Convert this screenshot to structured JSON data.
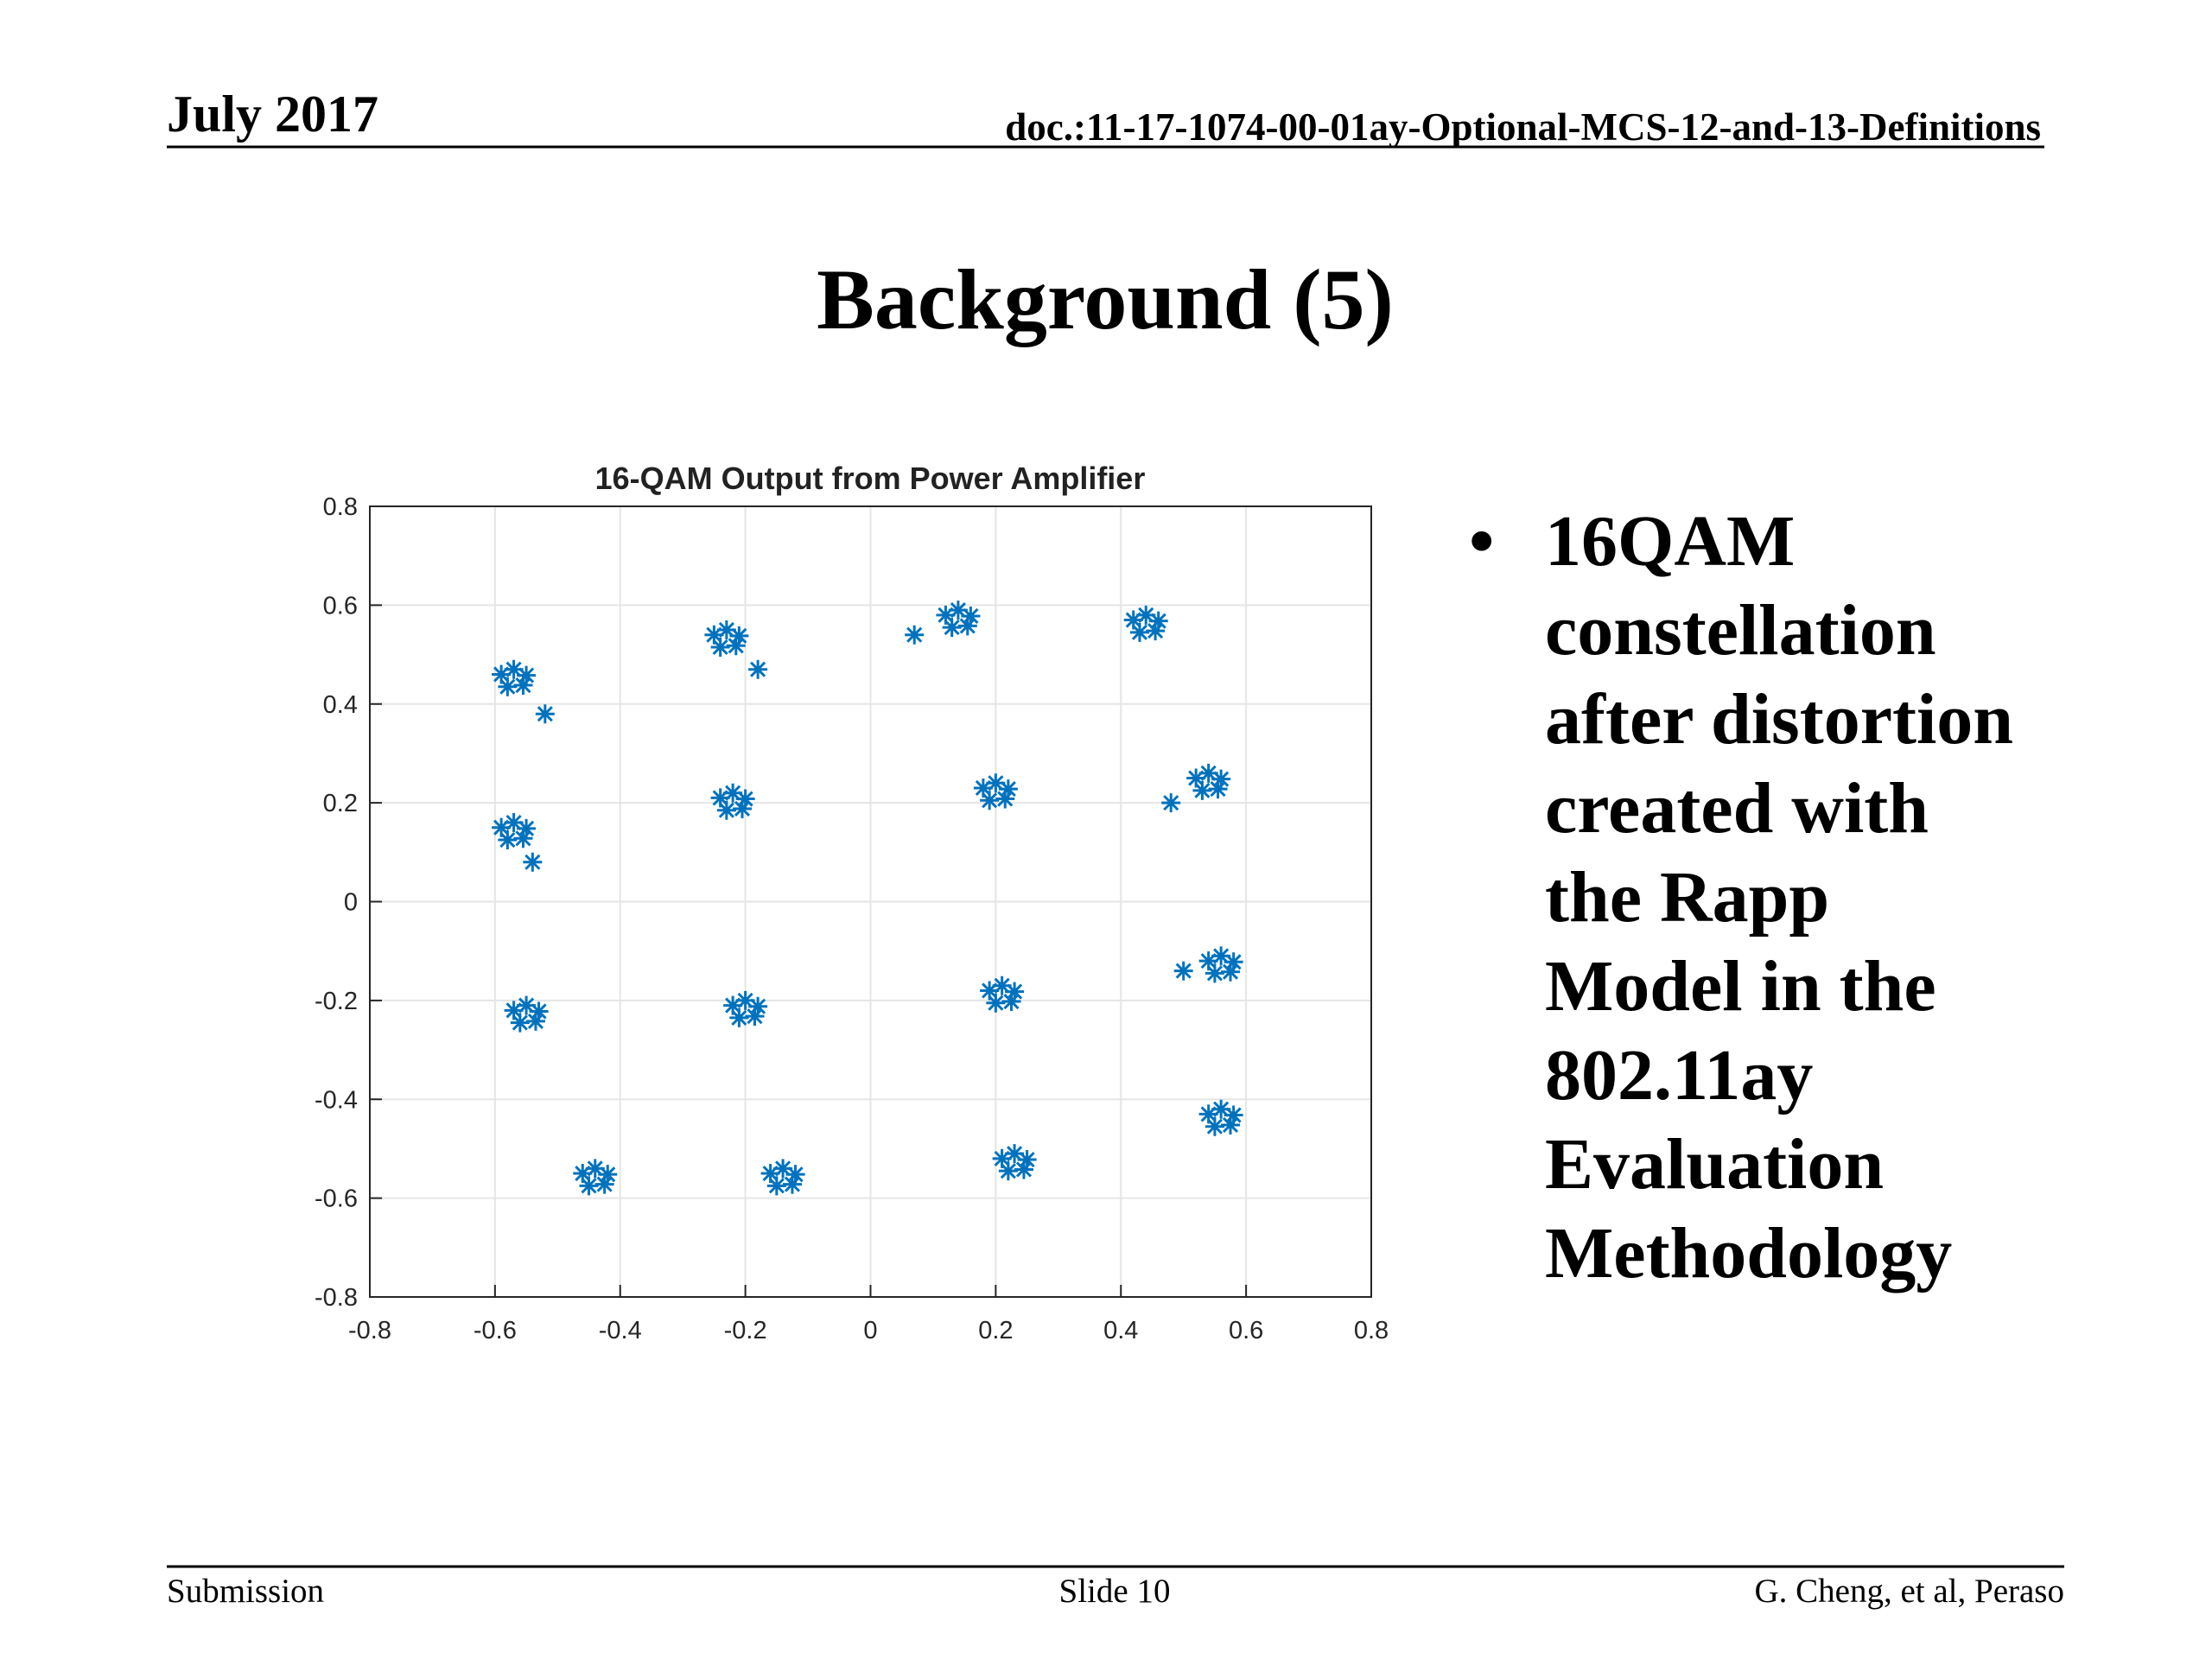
{
  "header": {
    "date": "July 2017",
    "doc": "doc.:11-17-1074-00-01ay-Optional-MCS-12-and-13-Definitions"
  },
  "title": "Background (5)",
  "bullets": [
    "16QAM constellation after distortion created with the Rapp Model in the 802.11ay Evaluation Methodology"
  ],
  "footer": {
    "left": "Submission",
    "center": "Slide 10",
    "right": "G. Cheng, et al, Peraso"
  },
  "chart_data": {
    "type": "scatter",
    "title": "16-QAM Output from Power Amplifier",
    "color": "#0072bd",
    "grid": true,
    "xlim": [
      -0.8,
      0.8
    ],
    "ylim": [
      -0.8,
      0.8
    ],
    "xticks": [
      -0.8,
      -0.6,
      -0.4,
      -0.2,
      0,
      0.2,
      0.4,
      0.6,
      0.8
    ],
    "yticks": [
      -0.8,
      -0.6,
      -0.4,
      -0.2,
      0,
      0.2,
      0.4,
      0.6,
      0.8
    ],
    "x": [
      -0.59,
      -0.555,
      -0.57,
      -0.55,
      -0.58,
      -0.25,
      -0.215,
      -0.23,
      -0.21,
      -0.24,
      0.12,
      0.155,
      0.14,
      0.16,
      0.13,
      0.42,
      0.455,
      0.44,
      0.46,
      0.43,
      -0.59,
      -0.555,
      -0.57,
      -0.55,
      -0.58,
      -0.24,
      -0.205,
      -0.22,
      -0.2,
      -0.23,
      0.18,
      0.215,
      0.2,
      0.22,
      0.19,
      0.52,
      0.555,
      0.54,
      0.56,
      0.53,
      -0.57,
      -0.535,
      -0.55,
      -0.53,
      -0.56,
      -0.22,
      -0.185,
      -0.2,
      -0.18,
      -0.21,
      0.19,
      0.225,
      0.21,
      0.23,
      0.2,
      0.54,
      0.575,
      0.56,
      0.58,
      0.55,
      -0.46,
      -0.425,
      -0.44,
      -0.42,
      -0.45,
      -0.16,
      -0.125,
      -0.14,
      -0.12,
      -0.15,
      0.21,
      0.245,
      0.23,
      0.25,
      0.22,
      0.54,
      0.575,
      0.56,
      0.58,
      0.55,
      -0.52,
      0.07,
      -0.54,
      -0.18,
      0.48,
      0.5
    ],
    "values": [
      0.46,
      0.438,
      0.47,
      0.458,
      0.435,
      0.54,
      0.518,
      0.55,
      0.538,
      0.515,
      0.58,
      0.558,
      0.59,
      0.578,
      0.555,
      0.57,
      0.548,
      0.58,
      0.568,
      0.545,
      0.15,
      0.128,
      0.16,
      0.148,
      0.125,
      0.21,
      0.188,
      0.22,
      0.208,
      0.185,
      0.23,
      0.208,
      0.24,
      0.228,
      0.205,
      0.25,
      0.228,
      0.26,
      0.248,
      0.225,
      -0.22,
      -0.242,
      -0.21,
      -0.222,
      -0.245,
      -0.21,
      -0.232,
      -0.2,
      -0.212,
      -0.235,
      -0.18,
      -0.202,
      -0.17,
      -0.182,
      -0.205,
      -0.12,
      -0.142,
      -0.11,
      -0.122,
      -0.145,
      -0.55,
      -0.572,
      -0.54,
      -0.552,
      -0.575,
      -0.55,
      -0.572,
      -0.54,
      -0.552,
      -0.575,
      -0.52,
      -0.542,
      -0.51,
      -0.522,
      -0.545,
      -0.43,
      -0.452,
      -0.42,
      -0.432,
      -0.455,
      0.38,
      0.54,
      0.08,
      0.47,
      0.2,
      -0.14
    ]
  }
}
